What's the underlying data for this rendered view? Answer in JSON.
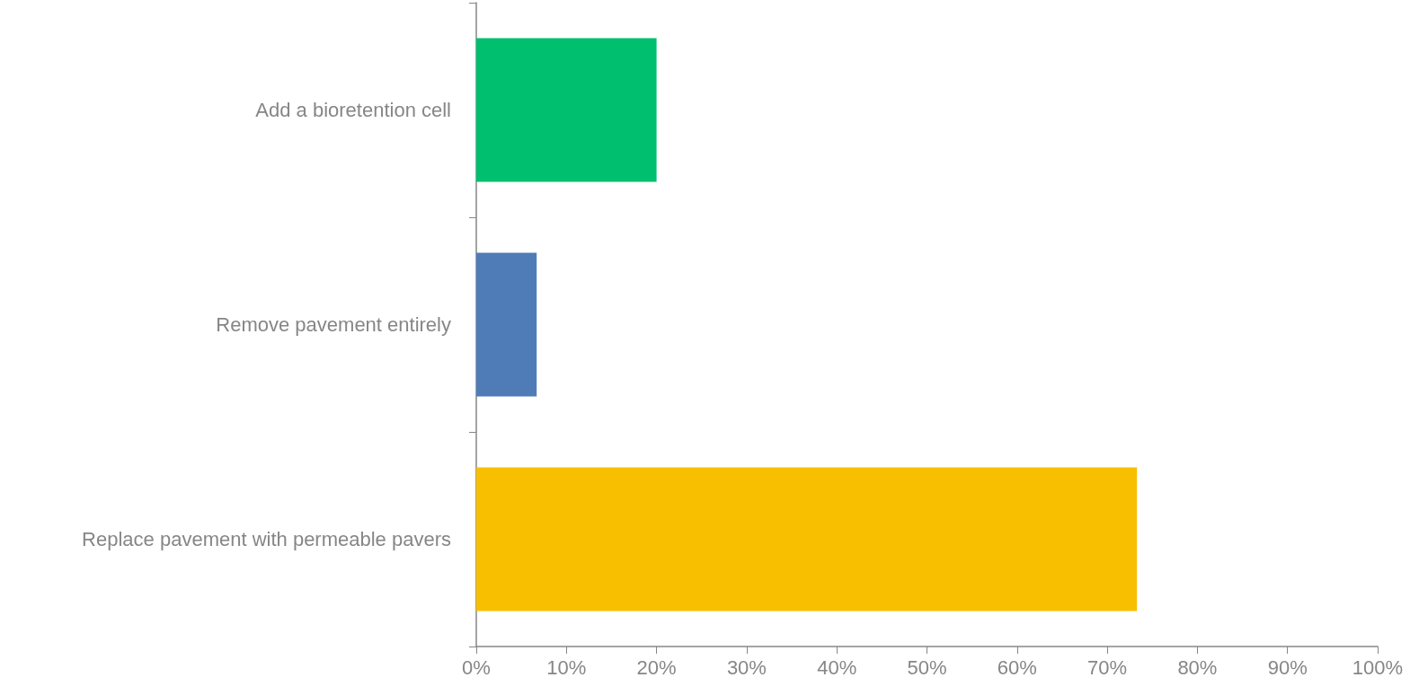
{
  "chart_data": {
    "type": "bar",
    "orientation": "horizontal",
    "categories": [
      "Add a bioretention cell",
      "Remove pavement entirely",
      "Replace pavement with permeable pavers"
    ],
    "values": [
      20,
      6.7,
      73.3
    ],
    "colors": [
      "#00bf6f",
      "#4f7cb7",
      "#f8bf00"
    ],
    "xlim": [
      0,
      100
    ],
    "xticks": [
      {
        "value": 0,
        "label": "0%"
      },
      {
        "value": 10,
        "label": "10%"
      },
      {
        "value": 20,
        "label": "20%"
      },
      {
        "value": 30,
        "label": "30%"
      },
      {
        "value": 40,
        "label": "40%"
      },
      {
        "value": 50,
        "label": "50%"
      },
      {
        "value": 60,
        "label": "60%"
      },
      {
        "value": 70,
        "label": "70%"
      },
      {
        "value": 80,
        "label": "80%"
      },
      {
        "value": 90,
        "label": "90%"
      },
      {
        "value": 100,
        "label": "100%"
      }
    ],
    "grid": false
  }
}
